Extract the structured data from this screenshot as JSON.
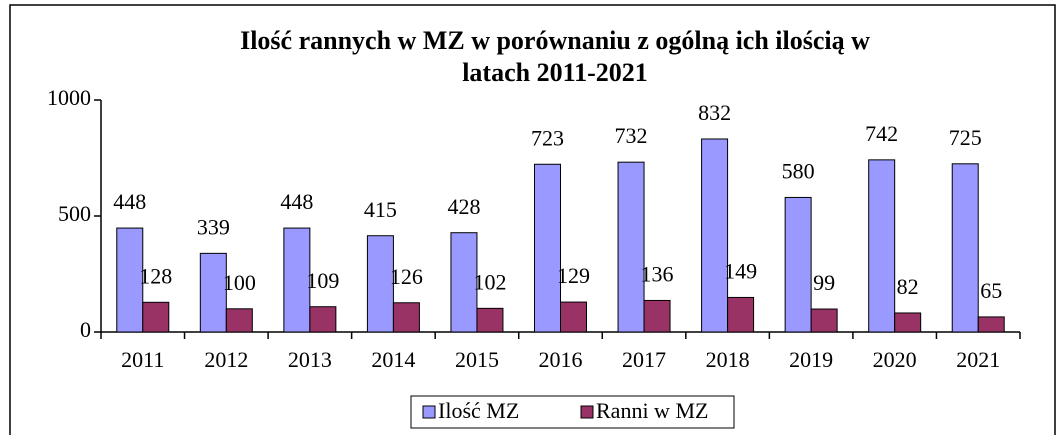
{
  "chart_data": {
    "type": "bar",
    "title": [
      "Ilość rannych w MZ w porównaniu z ogólną ich ilością w",
      "latach 2011-2021"
    ],
    "categories": [
      "2011",
      "2012",
      "2013",
      "2014",
      "2015",
      "2016",
      "2017",
      "2018",
      "2019",
      "2020",
      "2021"
    ],
    "series": [
      {
        "name": "Ilość MZ",
        "color": "#9999ff",
        "values": [
          448,
          339,
          448,
          415,
          428,
          723,
          732,
          832,
          580,
          742,
          725
        ]
      },
      {
        "name": "Ranni w MZ",
        "color": "#993366",
        "values": [
          128,
          100,
          109,
          126,
          102,
          129,
          136,
          149,
          99,
          82,
          65
        ]
      }
    ],
    "ylim": [
      0,
      1000
    ],
    "yticks": [
      0,
      500,
      1000
    ],
    "grid": false,
    "legend": "bottom"
  }
}
